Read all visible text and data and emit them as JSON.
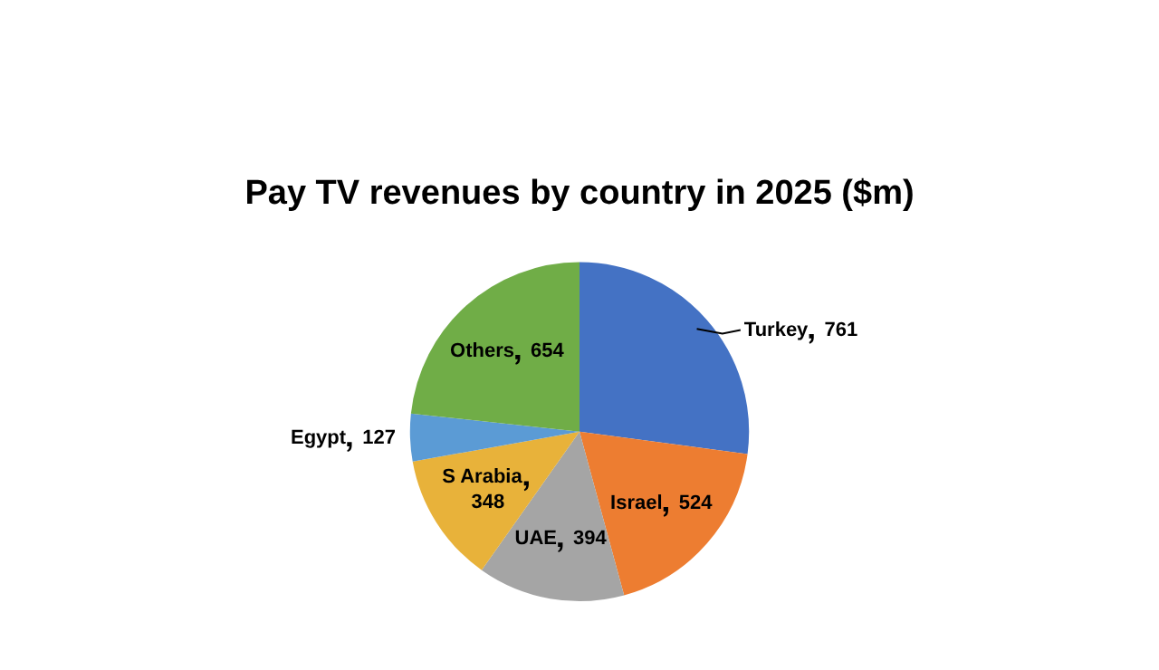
{
  "chart_data": {
    "type": "pie",
    "title": "Pay TV revenues by country in 2025 ($m)",
    "categories": [
      "Turkey",
      "Israel",
      "UAE",
      "S Arabia",
      "Egypt",
      "Others"
    ],
    "values": [
      761,
      524,
      394,
      348,
      127,
      654
    ],
    "colors": [
      "#4472c4",
      "#ed7d31",
      "#a5a5a5",
      "#e8b23a",
      "#5b9bd5",
      "#70ad47"
    ],
    "data_labels": true,
    "legend": false
  }
}
